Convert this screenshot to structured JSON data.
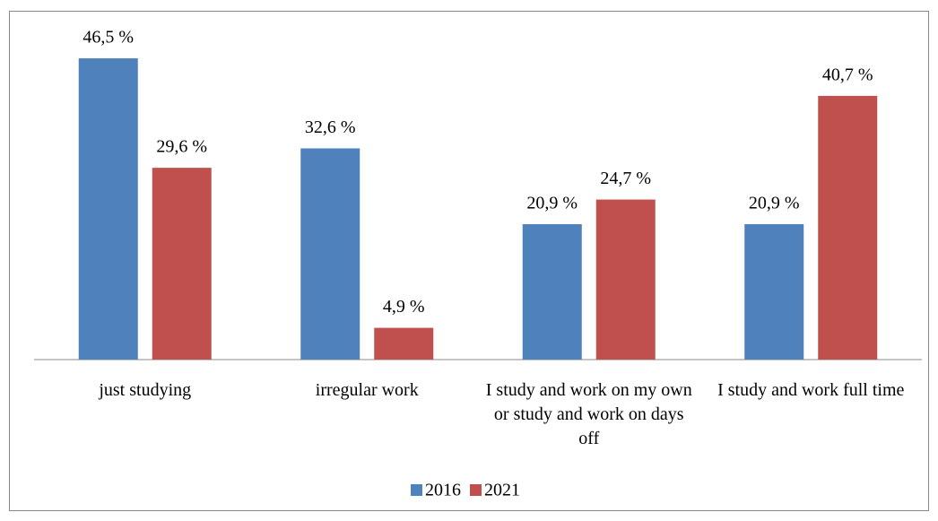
{
  "chart_data": {
    "type": "bar",
    "categories": [
      "just studying",
      "irregular work",
      "I study and work on my own or study and work on days off",
      "I study and work full time"
    ],
    "series": [
      {
        "name": "2016",
        "color": "#4f81bd",
        "values": [
          46.5,
          32.6,
          20.9,
          20.9
        ],
        "value_labels": [
          "46,5 %",
          "32,6 %",
          "20,9 %",
          "20,9 %"
        ]
      },
      {
        "name": "2021",
        "color": "#c0504d",
        "values": [
          29.6,
          4.9,
          24.7,
          40.7
        ],
        "value_labels": [
          "29,6 %",
          "4,9 %",
          "24,7 %",
          "40,7 %"
        ]
      }
    ],
    "legend": "bottom"
  }
}
